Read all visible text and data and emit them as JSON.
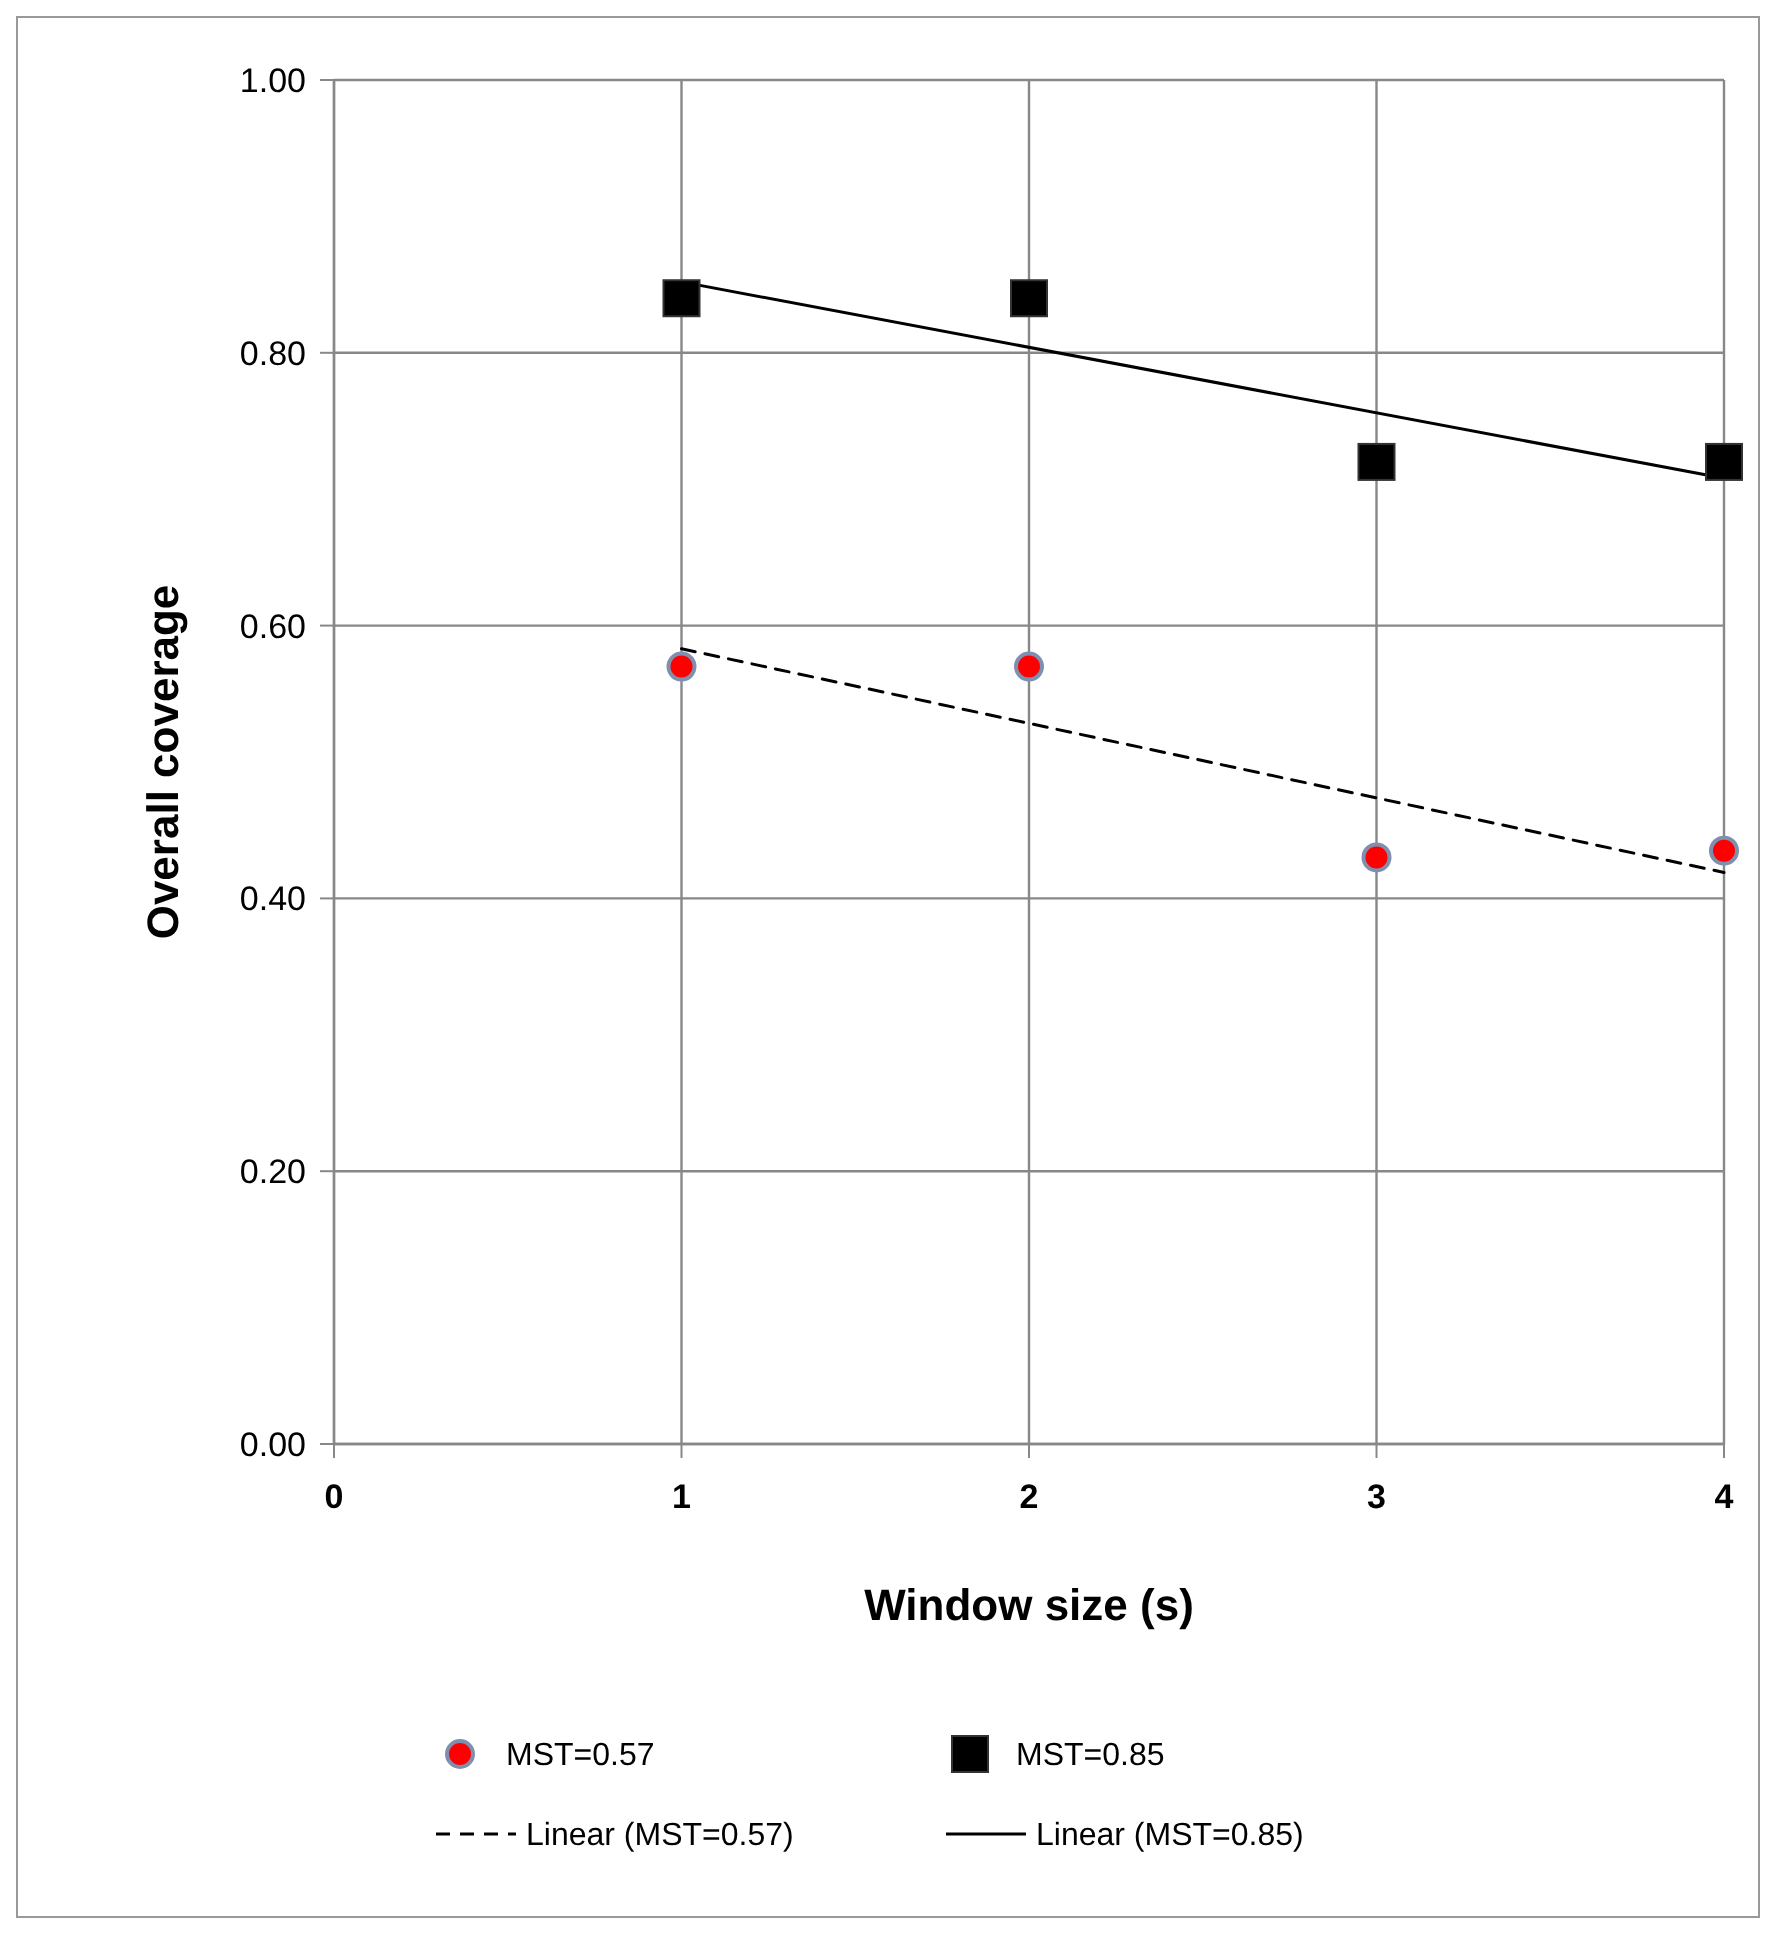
{
  "chart_data": {
    "type": "scatter",
    "xlabel": "Window size (s)",
    "ylabel": "Overall coverage",
    "xlim": [
      0,
      4
    ],
    "xticks": [
      0,
      1,
      2,
      3,
      4
    ],
    "ylim": [
      0,
      1
    ],
    "yticks": [
      {
        "value": 0,
        "label": "0.00"
      },
      {
        "value": 0.2,
        "label": "0.20"
      },
      {
        "value": 0.4,
        "label": "0.40"
      },
      {
        "value": 0.6,
        "label": "0.60"
      },
      {
        "value": 0.8,
        "label": "0.80"
      },
      {
        "value": 1,
        "label": "1.00"
      }
    ],
    "grid": true,
    "legend": "bottom",
    "series": [
      {
        "name": "MST=0.57",
        "type": "scatter",
        "marker": "circle",
        "color": "#ff0000",
        "x": [
          1,
          2,
          3,
          4
        ],
        "values": [
          0.57,
          0.57,
          0.43,
          0.435
        ]
      },
      {
        "name": "MST=0.85",
        "type": "scatter",
        "marker": "square",
        "color": "#000000",
        "x": [
          1,
          2,
          3,
          4
        ],
        "values": [
          0.84,
          0.84,
          0.72,
          0.72
        ]
      },
      {
        "name": "Linear (MST=0.57)",
        "type": "line",
        "line_style": "dashed",
        "marker": "none",
        "color": "#000000",
        "x": [
          1,
          4
        ],
        "values": [
          0.583,
          0.419
        ]
      },
      {
        "name": "Linear (MST=0.85)",
        "type": "line",
        "line_style": "solid",
        "marker": "none",
        "color": "#000000",
        "x": [
          1,
          4
        ],
        "values": [
          0.852,
          0.708
        ]
      }
    ]
  }
}
